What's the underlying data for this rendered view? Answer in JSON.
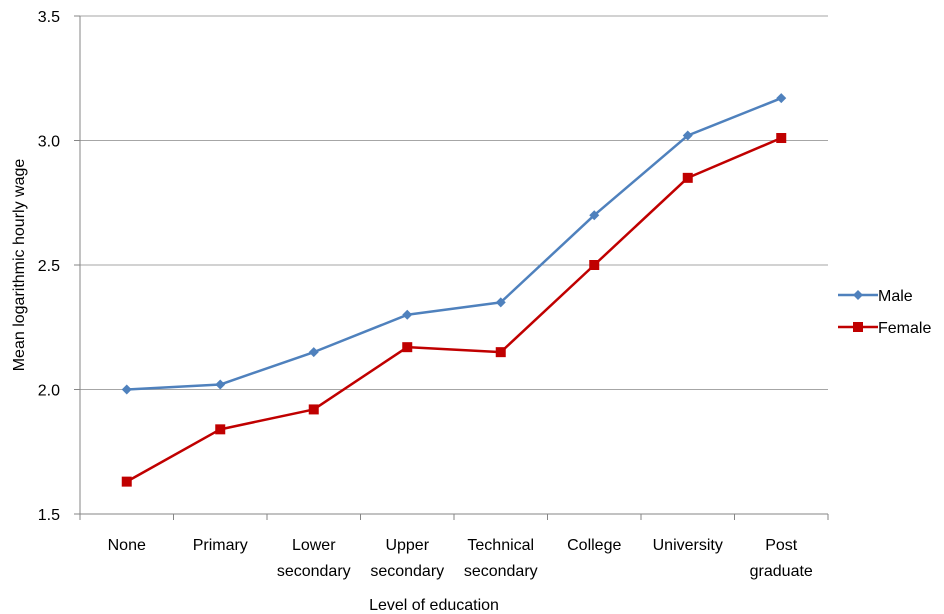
{
  "chart_data": {
    "type": "line",
    "title": "",
    "xlabel": "Level of education",
    "ylabel": "Mean logarithmic hourly wage",
    "ylim": [
      1.5,
      3.5
    ],
    "yticks": [
      "1.5",
      "2.0",
      "2.5",
      "3.0",
      "3.5"
    ],
    "grid": true,
    "legend_position": "right",
    "categories": [
      [
        "None"
      ],
      [
        "Primary"
      ],
      [
        "Lower",
        "secondary"
      ],
      [
        "Upper",
        "secondary"
      ],
      [
        "Technical",
        "secondary"
      ],
      [
        "College"
      ],
      [
        "University"
      ],
      [
        "Post",
        "graduate"
      ]
    ],
    "series": [
      {
        "name": "Male",
        "color": "#4F81BD",
        "marker": "diamond",
        "values": [
          2.0,
          2.02,
          2.15,
          2.3,
          2.35,
          2.7,
          3.02,
          3.17
        ]
      },
      {
        "name": "Female",
        "color": "#C00000",
        "marker": "square",
        "values": [
          1.63,
          1.84,
          1.92,
          2.17,
          2.15,
          2.5,
          2.85,
          3.01
        ]
      }
    ]
  }
}
